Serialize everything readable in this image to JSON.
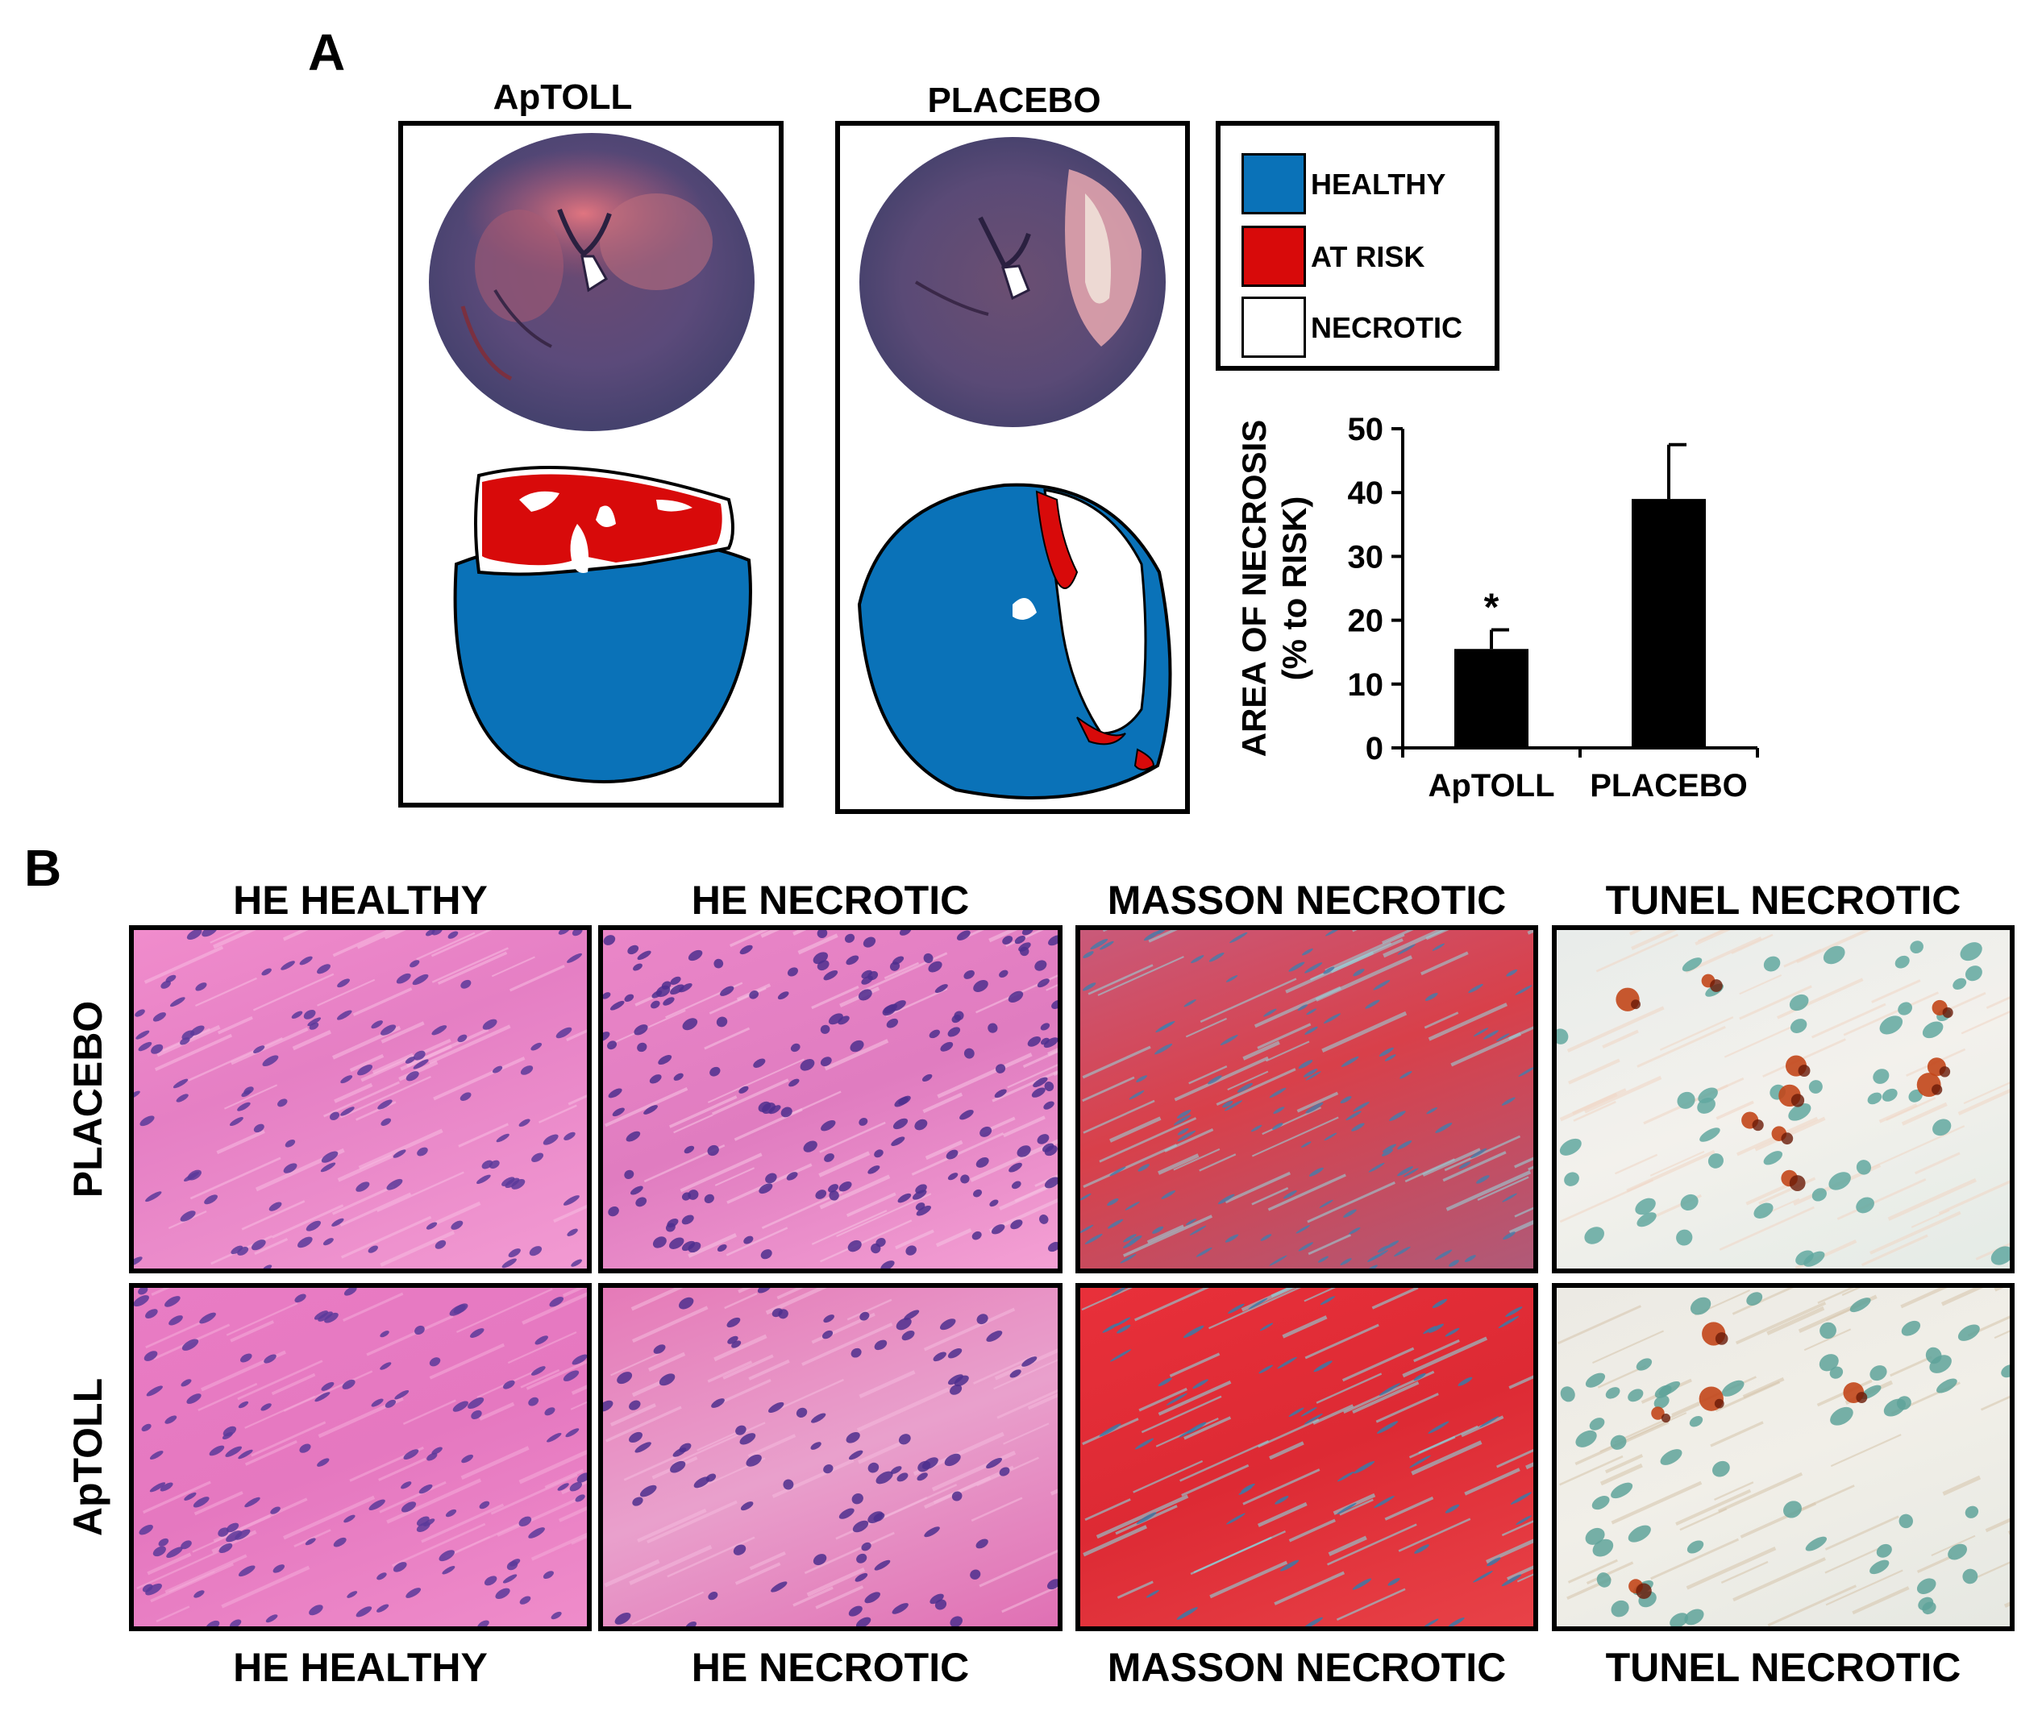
{
  "panel_a": {
    "letter": "A",
    "groups": [
      {
        "label": "ApTOLL"
      },
      {
        "label": "PLACEBO"
      }
    ],
    "legend": [
      {
        "label": "HEALTHY",
        "color": "#0a72b8"
      },
      {
        "label": "AT RISK",
        "color": "#d80a0a"
      },
      {
        "label": "NECROTIC",
        "color": "#ffffff"
      }
    ]
  },
  "panel_b": {
    "letter": "B",
    "columns": [
      "HE HEALTHY",
      "HE NECROTIC",
      "MASSON NECROTIC",
      "TUNEL NECROTIC"
    ],
    "rows": [
      "PLACEBO",
      "ApTOLL"
    ],
    "bottom_columns": [
      "HE HEALTHY",
      "HE NECROTIC",
      "MASSON NECROTIC",
      "TUNEL NECROTIC"
    ]
  },
  "chart_data": {
    "type": "bar",
    "categories": [
      "ApTOLL",
      "PLACEBO"
    ],
    "values": [
      15.5,
      39
    ],
    "errors": [
      3,
      8.5
    ],
    "annotations": [
      "*",
      ""
    ],
    "ylabel": "AREA OF NECROSIS",
    "ylabel2": "(% to RISK)",
    "ylim": [
      0,
      50
    ],
    "yticks": [
      0,
      10,
      20,
      30,
      40,
      50
    ],
    "bar_color": "#000000"
  }
}
